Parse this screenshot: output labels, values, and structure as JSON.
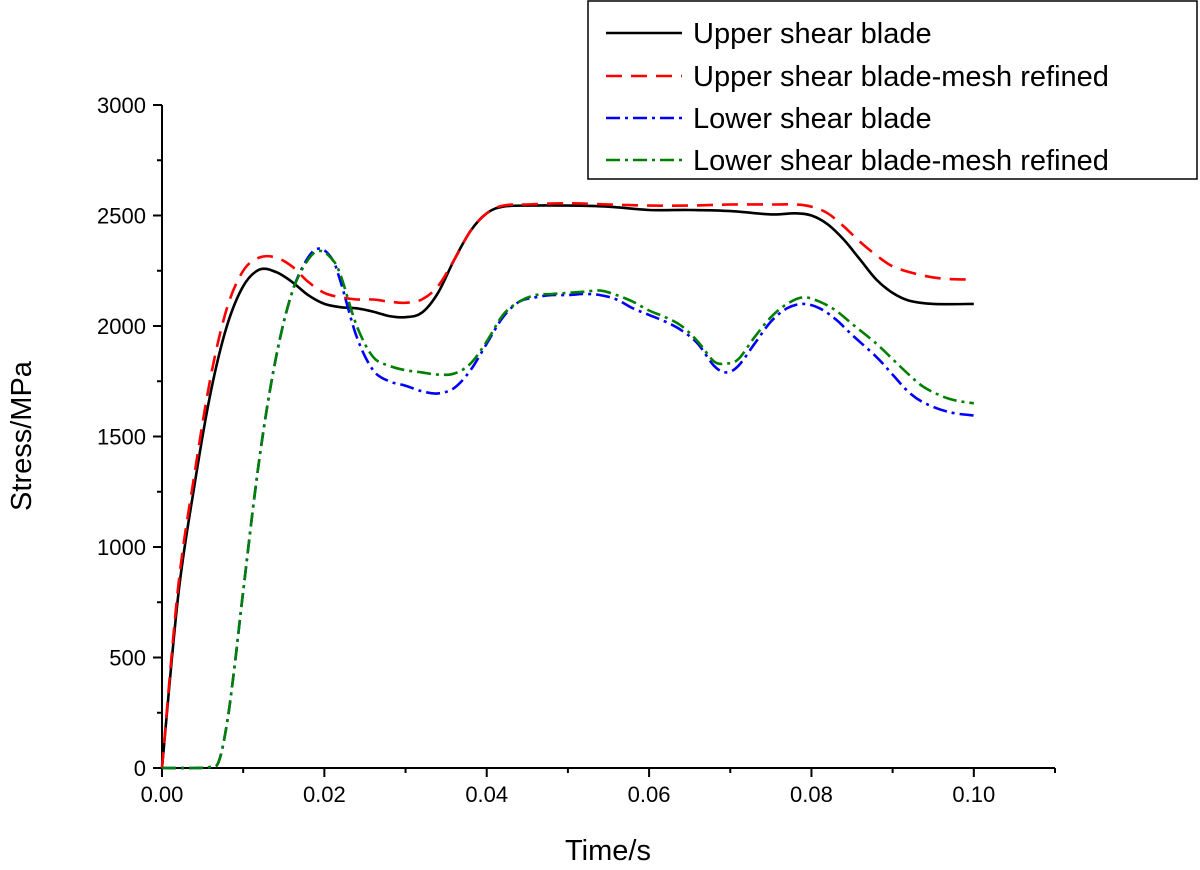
{
  "chart_data": {
    "type": "line",
    "xlabel": "Time/s",
    "ylabel": "Stress/MPa",
    "xlim": [
      0.0,
      0.11
    ],
    "ylim": [
      0,
      3000
    ],
    "x_ticks": [
      "0.00",
      "0.02",
      "0.04",
      "0.06",
      "0.08",
      "0.10"
    ],
    "y_ticks": [
      "0",
      "500",
      "1000",
      "1500",
      "2000",
      "2500",
      "3000"
    ],
    "grid": false,
    "legend_position": "top-right",
    "series": [
      {
        "name": "Upper shear blade",
        "color": "#000000",
        "dash": "solid",
        "points": [
          [
            0,
            0
          ],
          [
            0.002,
            780
          ],
          [
            0.004,
            1280
          ],
          [
            0.006,
            1700
          ],
          [
            0.008,
            2000
          ],
          [
            0.01,
            2180
          ],
          [
            0.012,
            2255
          ],
          [
            0.014,
            2245
          ],
          [
            0.016,
            2200
          ],
          [
            0.018,
            2140
          ],
          [
            0.02,
            2100
          ],
          [
            0.022,
            2085
          ],
          [
            0.024,
            2080
          ],
          [
            0.026,
            2065
          ],
          [
            0.028,
            2045
          ],
          [
            0.03,
            2040
          ],
          [
            0.032,
            2060
          ],
          [
            0.034,
            2150
          ],
          [
            0.036,
            2300
          ],
          [
            0.038,
            2430
          ],
          [
            0.04,
            2510
          ],
          [
            0.042,
            2540
          ],
          [
            0.045,
            2545
          ],
          [
            0.05,
            2545
          ],
          [
            0.055,
            2540
          ],
          [
            0.06,
            2525
          ],
          [
            0.065,
            2525
          ],
          [
            0.07,
            2520
          ],
          [
            0.075,
            2505
          ],
          [
            0.078,
            2510
          ],
          [
            0.08,
            2500
          ],
          [
            0.082,
            2460
          ],
          [
            0.084,
            2390
          ],
          [
            0.086,
            2300
          ],
          [
            0.088,
            2210
          ],
          [
            0.09,
            2150
          ],
          [
            0.092,
            2115
          ],
          [
            0.095,
            2100
          ],
          [
            0.1,
            2100
          ]
        ]
      },
      {
        "name": "Upper shear blade-mesh refined",
        "color": "#ff0000",
        "dash": "dashed",
        "points": [
          [
            0,
            0
          ],
          [
            0.002,
            820
          ],
          [
            0.004,
            1330
          ],
          [
            0.006,
            1770
          ],
          [
            0.008,
            2080
          ],
          [
            0.01,
            2250
          ],
          [
            0.012,
            2310
          ],
          [
            0.014,
            2310
          ],
          [
            0.016,
            2270
          ],
          [
            0.018,
            2200
          ],
          [
            0.02,
            2150
          ],
          [
            0.022,
            2130
          ],
          [
            0.024,
            2120
          ],
          [
            0.026,
            2120
          ],
          [
            0.028,
            2110
          ],
          [
            0.03,
            2105
          ],
          [
            0.032,
            2120
          ],
          [
            0.034,
            2180
          ],
          [
            0.036,
            2300
          ],
          [
            0.038,
            2430
          ],
          [
            0.04,
            2510
          ],
          [
            0.042,
            2545
          ],
          [
            0.045,
            2550
          ],
          [
            0.05,
            2555
          ],
          [
            0.055,
            2550
          ],
          [
            0.06,
            2545
          ],
          [
            0.065,
            2545
          ],
          [
            0.07,
            2550
          ],
          [
            0.075,
            2550
          ],
          [
            0.078,
            2550
          ],
          [
            0.08,
            2540
          ],
          [
            0.082,
            2510
          ],
          [
            0.084,
            2450
          ],
          [
            0.086,
            2380
          ],
          [
            0.088,
            2320
          ],
          [
            0.09,
            2270
          ],
          [
            0.093,
            2235
          ],
          [
            0.096,
            2215
          ],
          [
            0.1,
            2210
          ]
        ]
      },
      {
        "name": "Lower shear blade",
        "color": "#0000ff",
        "dash": "dashdot",
        "points": [
          [
            0,
            0
          ],
          [
            0.004,
            0
          ],
          [
            0.006,
            5
          ],
          [
            0.007,
            30
          ],
          [
            0.008,
            200
          ],
          [
            0.009,
            480
          ],
          [
            0.01,
            800
          ],
          [
            0.012,
            1400
          ],
          [
            0.014,
            1850
          ],
          [
            0.016,
            2150
          ],
          [
            0.018,
            2310
          ],
          [
            0.0195,
            2350
          ],
          [
            0.021,
            2300
          ],
          [
            0.022,
            2200
          ],
          [
            0.024,
            1950
          ],
          [
            0.026,
            1800
          ],
          [
            0.028,
            1750
          ],
          [
            0.03,
            1730
          ],
          [
            0.032,
            1705
          ],
          [
            0.034,
            1695
          ],
          [
            0.036,
            1720
          ],
          [
            0.038,
            1800
          ],
          [
            0.04,
            1920
          ],
          [
            0.042,
            2040
          ],
          [
            0.044,
            2110
          ],
          [
            0.046,
            2130
          ],
          [
            0.048,
            2140
          ],
          [
            0.05,
            2140
          ],
          [
            0.052,
            2145
          ],
          [
            0.054,
            2140
          ],
          [
            0.056,
            2120
          ],
          [
            0.058,
            2080
          ],
          [
            0.06,
            2050
          ],
          [
            0.062,
            2020
          ],
          [
            0.064,
            1980
          ],
          [
            0.066,
            1920
          ],
          [
            0.068,
            1820
          ],
          [
            0.0695,
            1790
          ],
          [
            0.071,
            1820
          ],
          [
            0.073,
            1920
          ],
          [
            0.075,
            2020
          ],
          [
            0.077,
            2080
          ],
          [
            0.079,
            2100
          ],
          [
            0.081,
            2080
          ],
          [
            0.083,
            2030
          ],
          [
            0.085,
            1960
          ],
          [
            0.088,
            1860
          ],
          [
            0.09,
            1780
          ],
          [
            0.092,
            1700
          ],
          [
            0.094,
            1650
          ],
          [
            0.097,
            1610
          ],
          [
            0.1,
            1595
          ]
        ]
      },
      {
        "name": "Lower shear blade-mesh refined",
        "color": "#008000",
        "dash": "dashdot",
        "points": [
          [
            0,
            0
          ],
          [
            0.004,
            0
          ],
          [
            0.006,
            5
          ],
          [
            0.007,
            30
          ],
          [
            0.008,
            200
          ],
          [
            0.009,
            480
          ],
          [
            0.01,
            800
          ],
          [
            0.012,
            1400
          ],
          [
            0.014,
            1850
          ],
          [
            0.016,
            2150
          ],
          [
            0.018,
            2300
          ],
          [
            0.0195,
            2340
          ],
          [
            0.021,
            2300
          ],
          [
            0.022,
            2230
          ],
          [
            0.024,
            2000
          ],
          [
            0.026,
            1860
          ],
          [
            0.028,
            1820
          ],
          [
            0.03,
            1800
          ],
          [
            0.032,
            1790
          ],
          [
            0.034,
            1780
          ],
          [
            0.036,
            1785
          ],
          [
            0.038,
            1830
          ],
          [
            0.04,
            1930
          ],
          [
            0.042,
            2050
          ],
          [
            0.044,
            2110
          ],
          [
            0.046,
            2140
          ],
          [
            0.048,
            2145
          ],
          [
            0.05,
            2150
          ],
          [
            0.052,
            2155
          ],
          [
            0.054,
            2160
          ],
          [
            0.056,
            2140
          ],
          [
            0.058,
            2110
          ],
          [
            0.06,
            2070
          ],
          [
            0.062,
            2040
          ],
          [
            0.064,
            2000
          ],
          [
            0.066,
            1930
          ],
          [
            0.068,
            1840
          ],
          [
            0.0695,
            1830
          ],
          [
            0.071,
            1850
          ],
          [
            0.073,
            1950
          ],
          [
            0.075,
            2040
          ],
          [
            0.077,
            2100
          ],
          [
            0.079,
            2130
          ],
          [
            0.081,
            2110
          ],
          [
            0.083,
            2070
          ],
          [
            0.085,
            2010
          ],
          [
            0.088,
            1920
          ],
          [
            0.09,
            1850
          ],
          [
            0.092,
            1780
          ],
          [
            0.094,
            1720
          ],
          [
            0.097,
            1670
          ],
          [
            0.1,
            1650
          ]
        ]
      }
    ]
  }
}
